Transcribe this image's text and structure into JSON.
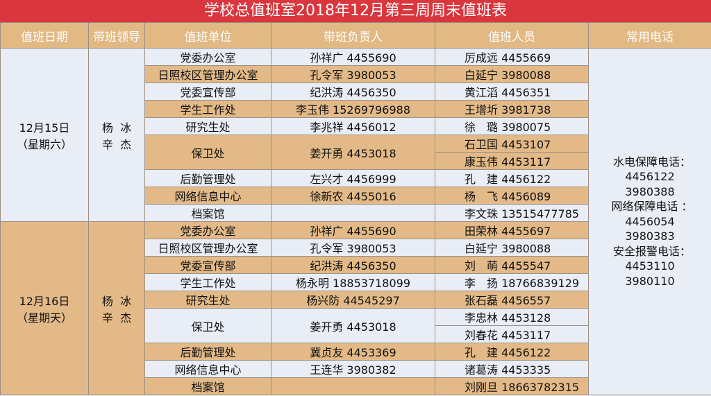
{
  "title": "学校总值班室2018年12月第三周周末值班表",
  "headers": [
    "值班日期",
    "带班领导",
    "值班单位",
    "带班负责人",
    "值班人员",
    "常用电话"
  ],
  "colors": {
    "title_bg": "#d9363e",
    "header_bg": "#e2b883",
    "row_light": "#e9eef6",
    "row_tan": "#e3ba87"
  },
  "days": [
    {
      "date": "12月15日",
      "weekday": "（星期六）",
      "leaders_line1": "杨  冰",
      "leaders_line2": "辛  杰",
      "shade": "light",
      "units": [
        {
          "unit": "党委办公室",
          "head": "孙祥广 4455690",
          "staff": [
            "厉成远 4455669"
          ],
          "shade": "light"
        },
        {
          "unit": "日照校区管理办公室",
          "head": "孔令军 3980053",
          "staff": [
            "白延宁 3980088"
          ],
          "shade": "tan"
        },
        {
          "unit": "党委宣传部",
          "head": "纪洪涛 4456350",
          "staff": [
            "黄江滔 4456351"
          ],
          "shade": "light"
        },
        {
          "unit": "学生工作处",
          "head": "李玉伟 15269796988",
          "staff": [
            "王增圻 3981738"
          ],
          "shade": "tan"
        },
        {
          "unit": "研究生处",
          "head": "李兆祥 4456012",
          "staff": [
            "徐　璐 3980075"
          ],
          "shade": "light"
        },
        {
          "unit": "保卫处",
          "head": "姜开勇 4453018",
          "staff": [
            "石卫国 4453107",
            "康玉伟 4453117"
          ],
          "shade": "tan"
        },
        {
          "unit": "后勤管理处",
          "head": "左兴才 4456999",
          "staff": [
            "孔　建 4456122"
          ],
          "shade": "light"
        },
        {
          "unit": "网络信息中心",
          "head": "徐新农 4455016",
          "staff": [
            "杨　飞 4456089"
          ],
          "shade": "tan"
        },
        {
          "unit": "档案馆",
          "head": "",
          "staff": [
            "李文珠 13515477785"
          ],
          "shade": "light"
        }
      ]
    },
    {
      "date": "12月16日",
      "weekday": "（星期天）",
      "leaders_line1": "杨  冰",
      "leaders_line2": "辛  杰",
      "shade": "tan",
      "units": [
        {
          "unit": "党委办公室",
          "head": "孙祥广 4455690",
          "staff": [
            "田荣林 4455697"
          ],
          "shade": "tan"
        },
        {
          "unit": "日照校区管理办公室",
          "head": "孔令军 3980053",
          "staff": [
            "白延宁 3980088"
          ],
          "shade": "light"
        },
        {
          "unit": "党委宣传部",
          "head": "纪洪涛 4456350",
          "staff": [
            "刘　萌 4455547"
          ],
          "shade": "tan"
        },
        {
          "unit": "学生工作处",
          "head": "杨永明 18853718099",
          "staff": [
            "李　扬 18766839129"
          ],
          "shade": "light"
        },
        {
          "unit": "研究生处",
          "head": "杨兴防 44545297",
          "staff": [
            "张石磊 4456557"
          ],
          "shade": "tan"
        },
        {
          "unit": "保卫处",
          "head": "姜开勇 4453018",
          "staff": [
            "李忠林 4453128",
            "刘春花 4453117"
          ],
          "shade": "light"
        },
        {
          "unit": "后勤管理处",
          "head": "冀贞友 4453369",
          "staff": [
            "孔　建 4456122"
          ],
          "shade": "tan"
        },
        {
          "unit": "网络信息中心",
          "head": "王连华 3980382",
          "staff": [
            "诸葛涛 4453335"
          ],
          "shade": "light"
        },
        {
          "unit": "档案馆",
          "head": "",
          "staff": [
            "刘刚旦 18663782315"
          ],
          "shade": "tan"
        }
      ]
    }
  ],
  "phones": [
    {
      "label": "水电保障电话：",
      "numbers": [
        "4456122",
        "3980388"
      ]
    },
    {
      "label": "网络保障电话 ：",
      "numbers": [
        "4456054",
        "3980383"
      ]
    },
    {
      "label": "安全报警电话：",
      "numbers": [
        "4453110",
        "3980110"
      ]
    }
  ]
}
